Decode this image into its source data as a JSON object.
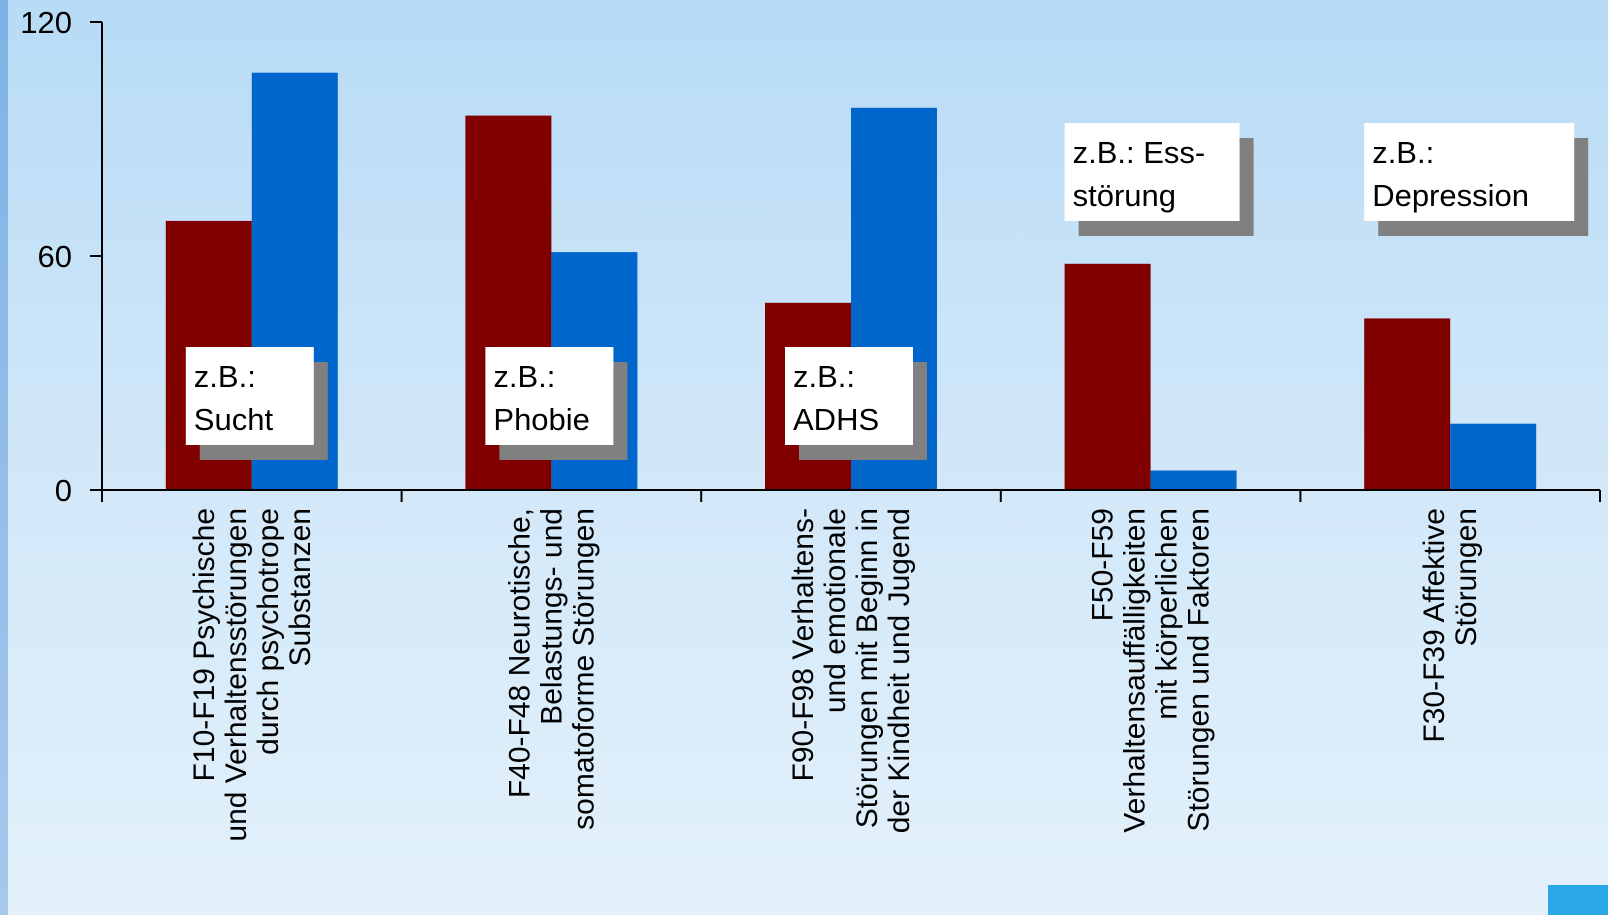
{
  "chart_data": {
    "type": "bar",
    "categories": [
      [
        "F10-F19 Psychische",
        "und Verhaltensstörungen",
        "durch psychotrope",
        "Substanzen"
      ],
      [
        "F40-F48 Neurotische,",
        "Belastungs- und",
        "somatoforme Störungen"
      ],
      [
        "F90-F98 Verhaltens-",
        "und emotionale",
        "Störungen mit Beginn in",
        "der Kindheit und Jugend"
      ],
      [
        "F50-F59",
        "Verhaltensauffälligkeiten",
        "mit körperlichen",
        "Störungen und Faktoren"
      ],
      [
        "F30-F39 Affektive",
        "Störungen"
      ]
    ],
    "series": [
      {
        "values": [
          69,
          96,
          48,
          58,
          44
        ],
        "color": "#800000"
      },
      {
        "values": [
          107,
          61,
          98,
          5,
          17
        ],
        "color": "#0066cc"
      }
    ],
    "ylim": [
      0,
      120
    ],
    "yticks": [
      "0",
      "60",
      "120"
    ],
    "grid": false,
    "legend": "none",
    "annotations": [
      {
        "category": 0,
        "lines": [
          "z.B.:",
          "Sucht"
        ]
      },
      {
        "category": 1,
        "lines": [
          "z.B.:",
          "Phobie"
        ]
      },
      {
        "category": 2,
        "lines": [
          "z.B.:",
          "ADHS"
        ]
      },
      {
        "category": 3,
        "lines": [
          "z.B.: Ess-",
          "störung"
        ]
      },
      {
        "category": 4,
        "lines": [
          "z.B.:",
          "Depression"
        ]
      }
    ]
  }
}
